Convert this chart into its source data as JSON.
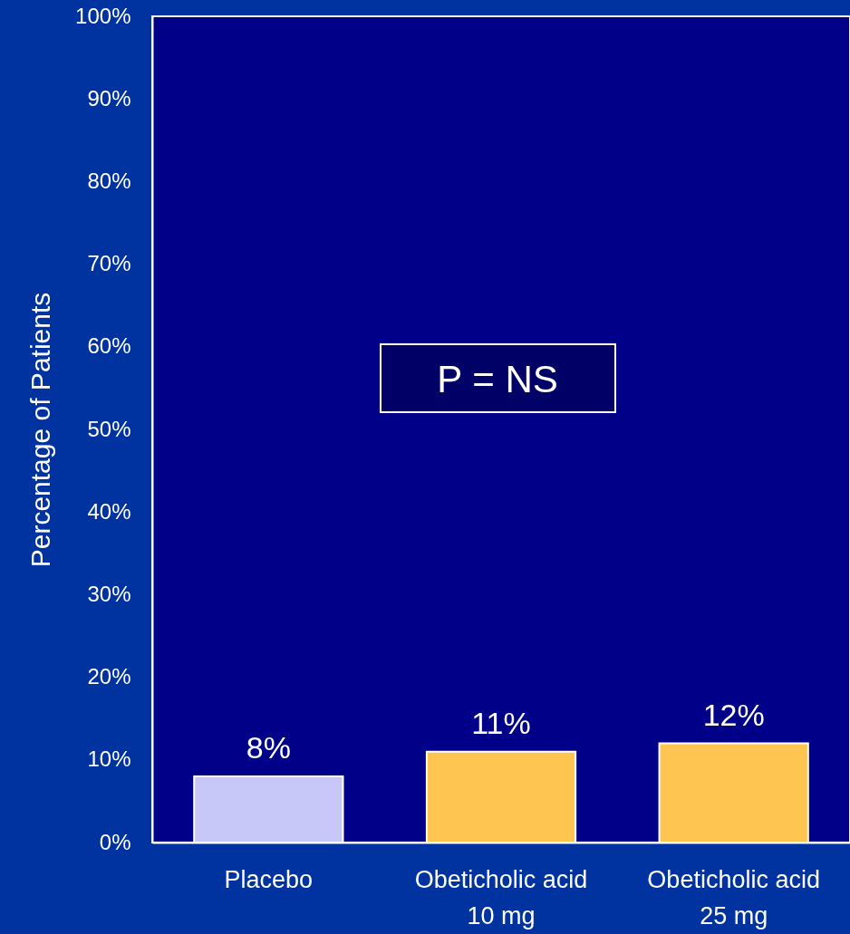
{
  "chart_data": {
    "type": "bar",
    "ylabel": "Percentage of Patients",
    "categories": [
      "Placebo",
      "Obeticholic acid\n10 mg",
      "Obeticholic acid\n25 mg"
    ],
    "values": [
      8,
      11,
      12
    ],
    "colors": [
      "#c8c8f8",
      "#ffc550",
      "#ffc550"
    ],
    "value_labels": [
      "8%",
      "11%",
      "12%"
    ],
    "ylim": [
      0,
      100
    ],
    "yticks": [
      {
        "value": 0,
        "label": "0%"
      },
      {
        "value": 10,
        "label": "10%"
      },
      {
        "value": 20,
        "label": "20%"
      },
      {
        "value": 30,
        "label": "30%"
      },
      {
        "value": 40,
        "label": "40%"
      },
      {
        "value": 50,
        "label": "50%"
      },
      {
        "value": 60,
        "label": "60%"
      },
      {
        "value": 70,
        "label": "70%"
      },
      {
        "value": 80,
        "label": "80%"
      },
      {
        "value": 90,
        "label": "90%"
      },
      {
        "value": 100,
        "label": "100%"
      }
    ],
    "annotations": [
      "P = NS"
    ]
  }
}
